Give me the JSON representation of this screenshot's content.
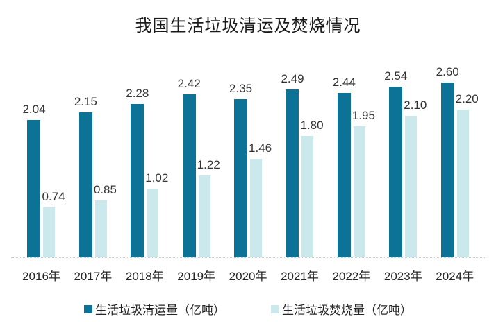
{
  "chart_data": {
    "type": "bar",
    "title": "我国生活垃圾清运及焚烧情况",
    "categories": [
      "2016年",
      "2017年",
      "2018年",
      "2019年",
      "2020年",
      "2021年",
      "2022年",
      "2023年",
      "2024年"
    ],
    "series": [
      {
        "name": "生活垃圾清运量（亿吨）",
        "color": "#0C7397",
        "values": [
          2.04,
          2.15,
          2.28,
          2.42,
          2.35,
          2.49,
          2.44,
          2.54,
          2.6
        ]
      },
      {
        "name": "生活垃圾焚烧量（亿吨）",
        "color": "#CBE8EC",
        "values": [
          0.74,
          0.85,
          1.02,
          1.22,
          1.46,
          1.8,
          1.95,
          2.1,
          2.2
        ]
      }
    ],
    "xlabel": "",
    "ylabel": "",
    "ylim": [
      0,
      2.8
    ],
    "grid": false,
    "legend_position": "bottom",
    "value_labels": true,
    "value_label_decimals": 2
  },
  "colors": {
    "axis_line": "#c9c9c9",
    "value_label_text": "#333333",
    "axis_label_text": "#262626",
    "title_text": "#1a1a1a",
    "background": "#ffffff"
  }
}
